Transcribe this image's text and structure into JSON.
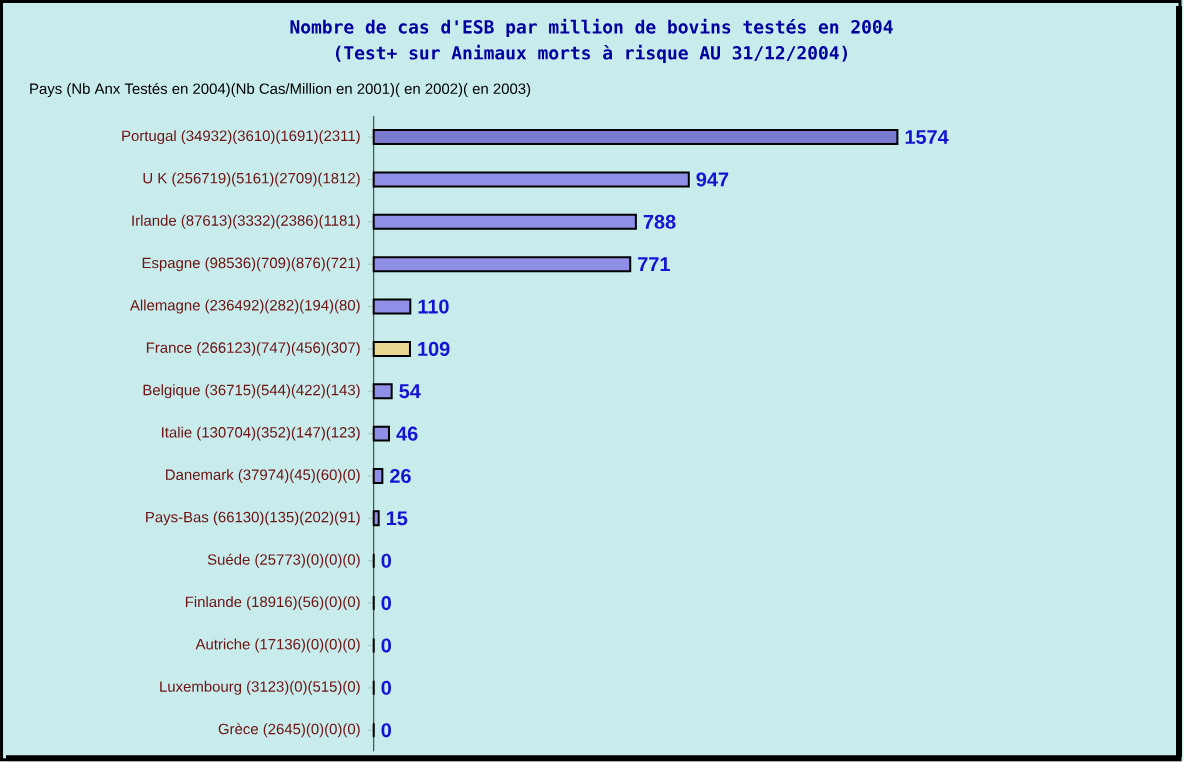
{
  "chart_data": {
    "type": "bar",
    "orientation": "horizontal",
    "title": "Nombre de cas d'ESB par million de bovins testés en 2004",
    "subtitle": "(Test+ sur Animaux morts à risque AU 31/12/2004)",
    "ylabel": "Pays (Nb Anx Testés en 2004)(Nb Cas/Million en 2001)( en 2002)( en 2003)",
    "categories": [
      "Portugal (34932)(3610)(1691)(2311)",
      "U K (256719)(5161)(2709)(1812)",
      "Irlande (87613)(3332)(2386)(1181)",
      "Espagne (98536)(709)(876)(721)",
      "Allemagne (236492)(282)(194)(80)",
      "France (266123)(747)(456)(307)",
      "Belgique (36715)(544)(422)(143)",
      "Italie (130704)(352)(147)(123)",
      "Danemark (37974)(45)(60)(0)",
      "Pays-Bas (66130)(135)(202)(91)",
      "Suéde (25773)(0)(0)(0)",
      "Finlande (18916)(56)(0)(0)",
      "Autriche (17136)(0)(0)(0)",
      "Luxembourg (3123)(0)(515)(0)",
      "Grèce (2645)(0)(0)(0)"
    ],
    "values": [
      1574,
      947,
      788,
      771,
      110,
      109,
      54,
      46,
      26,
      15,
      0,
      0,
      0,
      0,
      0
    ],
    "colors": [
      "#7a7ad0",
      "#8f8fe8",
      "#8f8fe8",
      "#8f8fe8",
      "#8f8fe8",
      "#e8d890",
      "#8f8fe8",
      "#8f8fe8",
      "#8f8fe8",
      "#8f8fe8",
      "#8f8fe8",
      "#8f8fe8",
      "#8f8fe8",
      "#8f8fe8",
      "#8f8fe8"
    ],
    "data_labels": true,
    "tick_labels": "y"
  }
}
